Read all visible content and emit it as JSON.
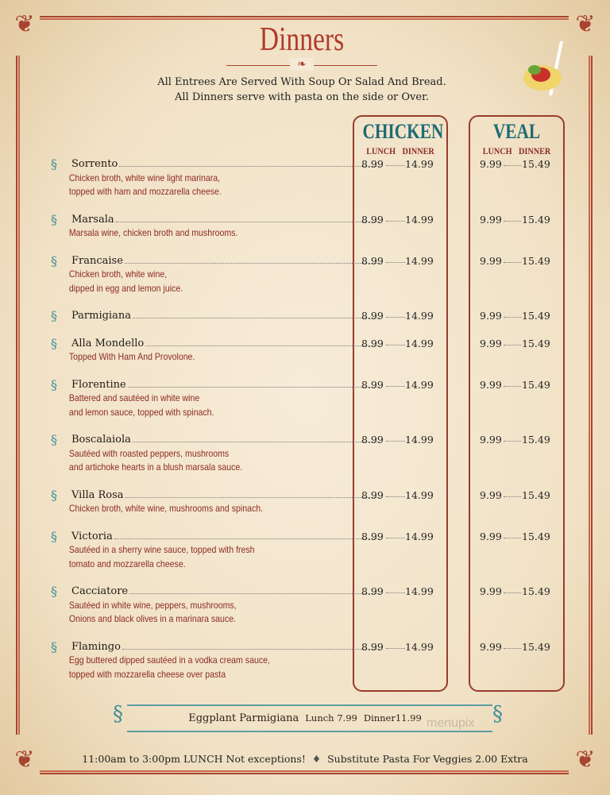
{
  "header": {
    "title": "Dinners",
    "subtitle_1": "All Entrees Are Served With Soup Or Salad And Bread.",
    "subtitle_2": "All Dinners serve with pasta on the side or Over."
  },
  "columns": {
    "chicken": "CHICKEN",
    "veal": "VEAL",
    "lunch": "LUNCH",
    "dinner": "DINNER"
  },
  "items": [
    {
      "name": "Sorrento",
      "desc": [
        "Chicken broth, white wine light marinara,",
        "topped with ham and mozzarella cheese."
      ],
      "chicken_lunch": "8.99",
      "chicken_dinner": "14.99",
      "veal_lunch": "9.99",
      "veal_dinner": "15.49"
    },
    {
      "name": "Marsala",
      "desc": [
        "Marsala wine, chicken broth and mushrooms."
      ],
      "chicken_lunch": "8.99",
      "chicken_dinner": "14.99",
      "veal_lunch": "9.99",
      "veal_dinner": "15.49"
    },
    {
      "name": "Francaise",
      "desc": [
        "Chicken broth, white wine,",
        "dipped in egg and lemon juice."
      ],
      "chicken_lunch": "8.99",
      "chicken_dinner": "14.99",
      "veal_lunch": "9.99",
      "veal_dinner": "15.49"
    },
    {
      "name": "Parmigiana",
      "desc": [],
      "chicken_lunch": "8.99",
      "chicken_dinner": "14.99",
      "veal_lunch": "9.99",
      "veal_dinner": "15.49"
    },
    {
      "name": "Alla Mondello",
      "desc": [
        "Topped With Ham And Provolone."
      ],
      "chicken_lunch": "8.99",
      "chicken_dinner": "14.99",
      "veal_lunch": "9.99",
      "veal_dinner": "15.49"
    },
    {
      "name": "Florentine",
      "desc": [
        "Battered and sautéed in white wine",
        "and lemon sauce, topped with spinach."
      ],
      "chicken_lunch": "8.99",
      "chicken_dinner": "14.99",
      "veal_lunch": "9.99",
      "veal_dinner": "15.49"
    },
    {
      "name": "Boscalaiola",
      "desc": [
        "Sautéed with roasted peppers, mushrooms",
        "and artichoke hearts in a blush marsala sauce."
      ],
      "chicken_lunch": "8.99",
      "chicken_dinner": "14.99",
      "veal_lunch": "9.99",
      "veal_dinner": "15.49"
    },
    {
      "name": "Villa Rosa",
      "desc": [
        "Chicken broth, white wine, mushrooms and spinach."
      ],
      "chicken_lunch": "8.99",
      "chicken_dinner": "14.99",
      "veal_lunch": "9.99",
      "veal_dinner": "15.49"
    },
    {
      "name": "Victoria",
      "desc": [
        "Sautéed in a sherry wine sauce, topped with fresh",
        "tomato and mozzarella cheese."
      ],
      "chicken_lunch": "8.99",
      "chicken_dinner": "14.99",
      "veal_lunch": "9.99",
      "veal_dinner": "15.49"
    },
    {
      "name": "Cacciatore",
      "desc": [
        "Sautéed in white wine, peppers, mushrooms,",
        "Onions and black olives in a marinara sauce."
      ],
      "chicken_lunch": "8.99",
      "chicken_dinner": "14.99",
      "veal_lunch": "9.99",
      "veal_dinner": "15.49"
    },
    {
      "name": "Flamingo",
      "desc": [
        "Egg buttered dipped sautéed in a vodka cream sauce,",
        "topped with mozzarella cheese over pasta"
      ],
      "chicken_lunch": "8.99",
      "chicken_dinner": "14.99",
      "veal_lunch": "9.99",
      "veal_dinner": "15.49"
    }
  ],
  "eggplant": {
    "name": "Eggplant Parmigiana",
    "lunch": "Lunch 7.99",
    "dinner": "Dinner11.99"
  },
  "footer": {
    "lunch_hours": "11:00am to 3:00pm LUNCH Not exceptions!",
    "substitute": "Substitute Pasta For Veggies 2.00 Extra"
  },
  "watermark": "menupix",
  "colors": {
    "title": "#b13a2c",
    "column_heading": "#1e6a75",
    "description": "#8c2b22",
    "frame": "#a8442f",
    "ornament": "#3e8f9a"
  }
}
